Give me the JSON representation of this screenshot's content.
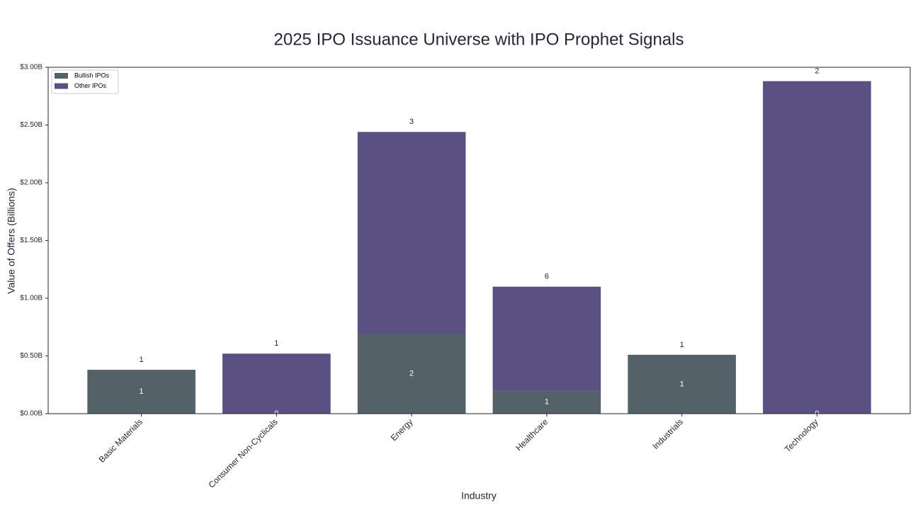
{
  "chart_data": {
    "type": "stacked_bar",
    "title": "2025 IPO Issuance Universe with IPO Prophet Signals",
    "x_label": "Industry",
    "y_label": "Value of Offers (Billions)",
    "categories": [
      "Basic Materials",
      "Consumer Non-Cyclicals",
      "Energy",
      "Healthcare",
      "Industrials",
      "Technology"
    ],
    "series": [
      {
        "name": "Bullish IPOs",
        "color": "#546168",
        "values": [
          0.38,
          0,
          0.69,
          0.2,
          0.51,
          0
        ]
      },
      {
        "name": "Other IPOs",
        "color": "#5a5082",
        "values": [
          0,
          0.52,
          1.75,
          0.9,
          0,
          2.88
        ]
      }
    ],
    "bullish_counts": [
      1,
      0,
      2,
      1,
      1,
      0
    ],
    "total_counts": [
      1,
      1,
      3,
      6,
      1,
      2
    ],
    "ylim": [
      0,
      3
    ],
    "yticks": [
      {
        "value": 0,
        "label": "$0.00B"
      },
      {
        "value": 0.5,
        "label": "$0.50B"
      },
      {
        "value": 1,
        "label": "$1.00B"
      },
      {
        "value": 1.5,
        "label": "$1.50B"
      },
      {
        "value": 2,
        "label": "$2.00B"
      },
      {
        "value": 2.5,
        "label": "$2.50B"
      },
      {
        "value": 3,
        "label": "$3.00B"
      }
    ],
    "legend": "upper left"
  }
}
